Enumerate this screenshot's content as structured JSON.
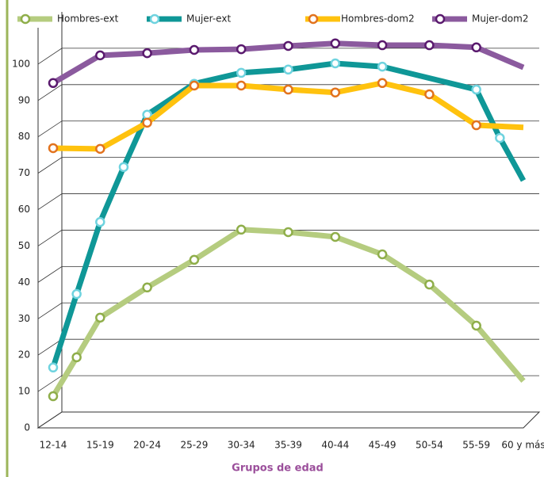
{
  "chart_data": {
    "type": "line",
    "x_label": "Grupos de edad",
    "xlim": [
      0,
      10
    ],
    "xticks": [
      {
        "value": 0,
        "label": "12-14"
      },
      {
        "value": 1,
        "label": "15-19"
      },
      {
        "value": 2,
        "label": "20-24"
      },
      {
        "value": 3,
        "label": "25-29"
      },
      {
        "value": 4,
        "label": "30-34"
      },
      {
        "value": 5,
        "label": "35-39"
      },
      {
        "value": 6,
        "label": "40-44"
      },
      {
        "value": 7,
        "label": "45-49"
      },
      {
        "value": 8,
        "label": "50-54"
      },
      {
        "value": 9,
        "label": "55-59"
      },
      {
        "value": 10,
        "label": "60 y más"
      }
    ],
    "ylim": [
      0,
      110
    ],
    "yticks": [
      0,
      10,
      20,
      30,
      40,
      50,
      60,
      70,
      80,
      90,
      100
    ],
    "grid": true,
    "series": [
      {
        "name": "Hombres-ext",
        "color": "#b5cc7f",
        "marker": "#8fae4a",
        "x": [
          0,
          0.5,
          1,
          2,
          3,
          4,
          5,
          6,
          7,
          8,
          9,
          10
        ],
        "values": [
          8.7,
          19.4,
          30.3,
          38.6,
          46.2,
          54.5,
          53.8,
          52.5,
          47.7,
          39.4,
          28.1,
          12.9
        ]
      },
      {
        "name": "Mujer-ext",
        "color": "#0f9797",
        "marker": "#6fd3df",
        "x": [
          0,
          0.5,
          1,
          1.5,
          2,
          3,
          4,
          5,
          6,
          7,
          9,
          9.5,
          10
        ],
        "values": [
          16.6,
          36.8,
          56.6,
          71.7,
          86.1,
          94.6,
          97.6,
          98.5,
          100.2,
          99.3,
          93,
          79.7,
          68
        ]
      },
      {
        "name": "Hombres-dom2",
        "color": "#ffc20e",
        "marker": "#e2731e",
        "x": [
          0,
          1,
          2,
          3,
          4,
          5,
          6,
          7,
          8,
          9,
          10
        ],
        "values": [
          76.9,
          76.7,
          83.9,
          94.1,
          94.1,
          93,
          92.2,
          94.8,
          91.7,
          83.2,
          82.6
        ]
      },
      {
        "name": "Mujer-dom2",
        "color": "#8b5a9e",
        "marker": "#5a1a6e",
        "x": [
          0,
          1,
          2,
          3,
          4,
          5,
          6,
          7,
          8,
          9,
          10
        ],
        "values": [
          94.8,
          102.4,
          103,
          103.9,
          104.1,
          105,
          105.7,
          105.2,
          105.2,
          104.6,
          99.1
        ]
      }
    ]
  }
}
